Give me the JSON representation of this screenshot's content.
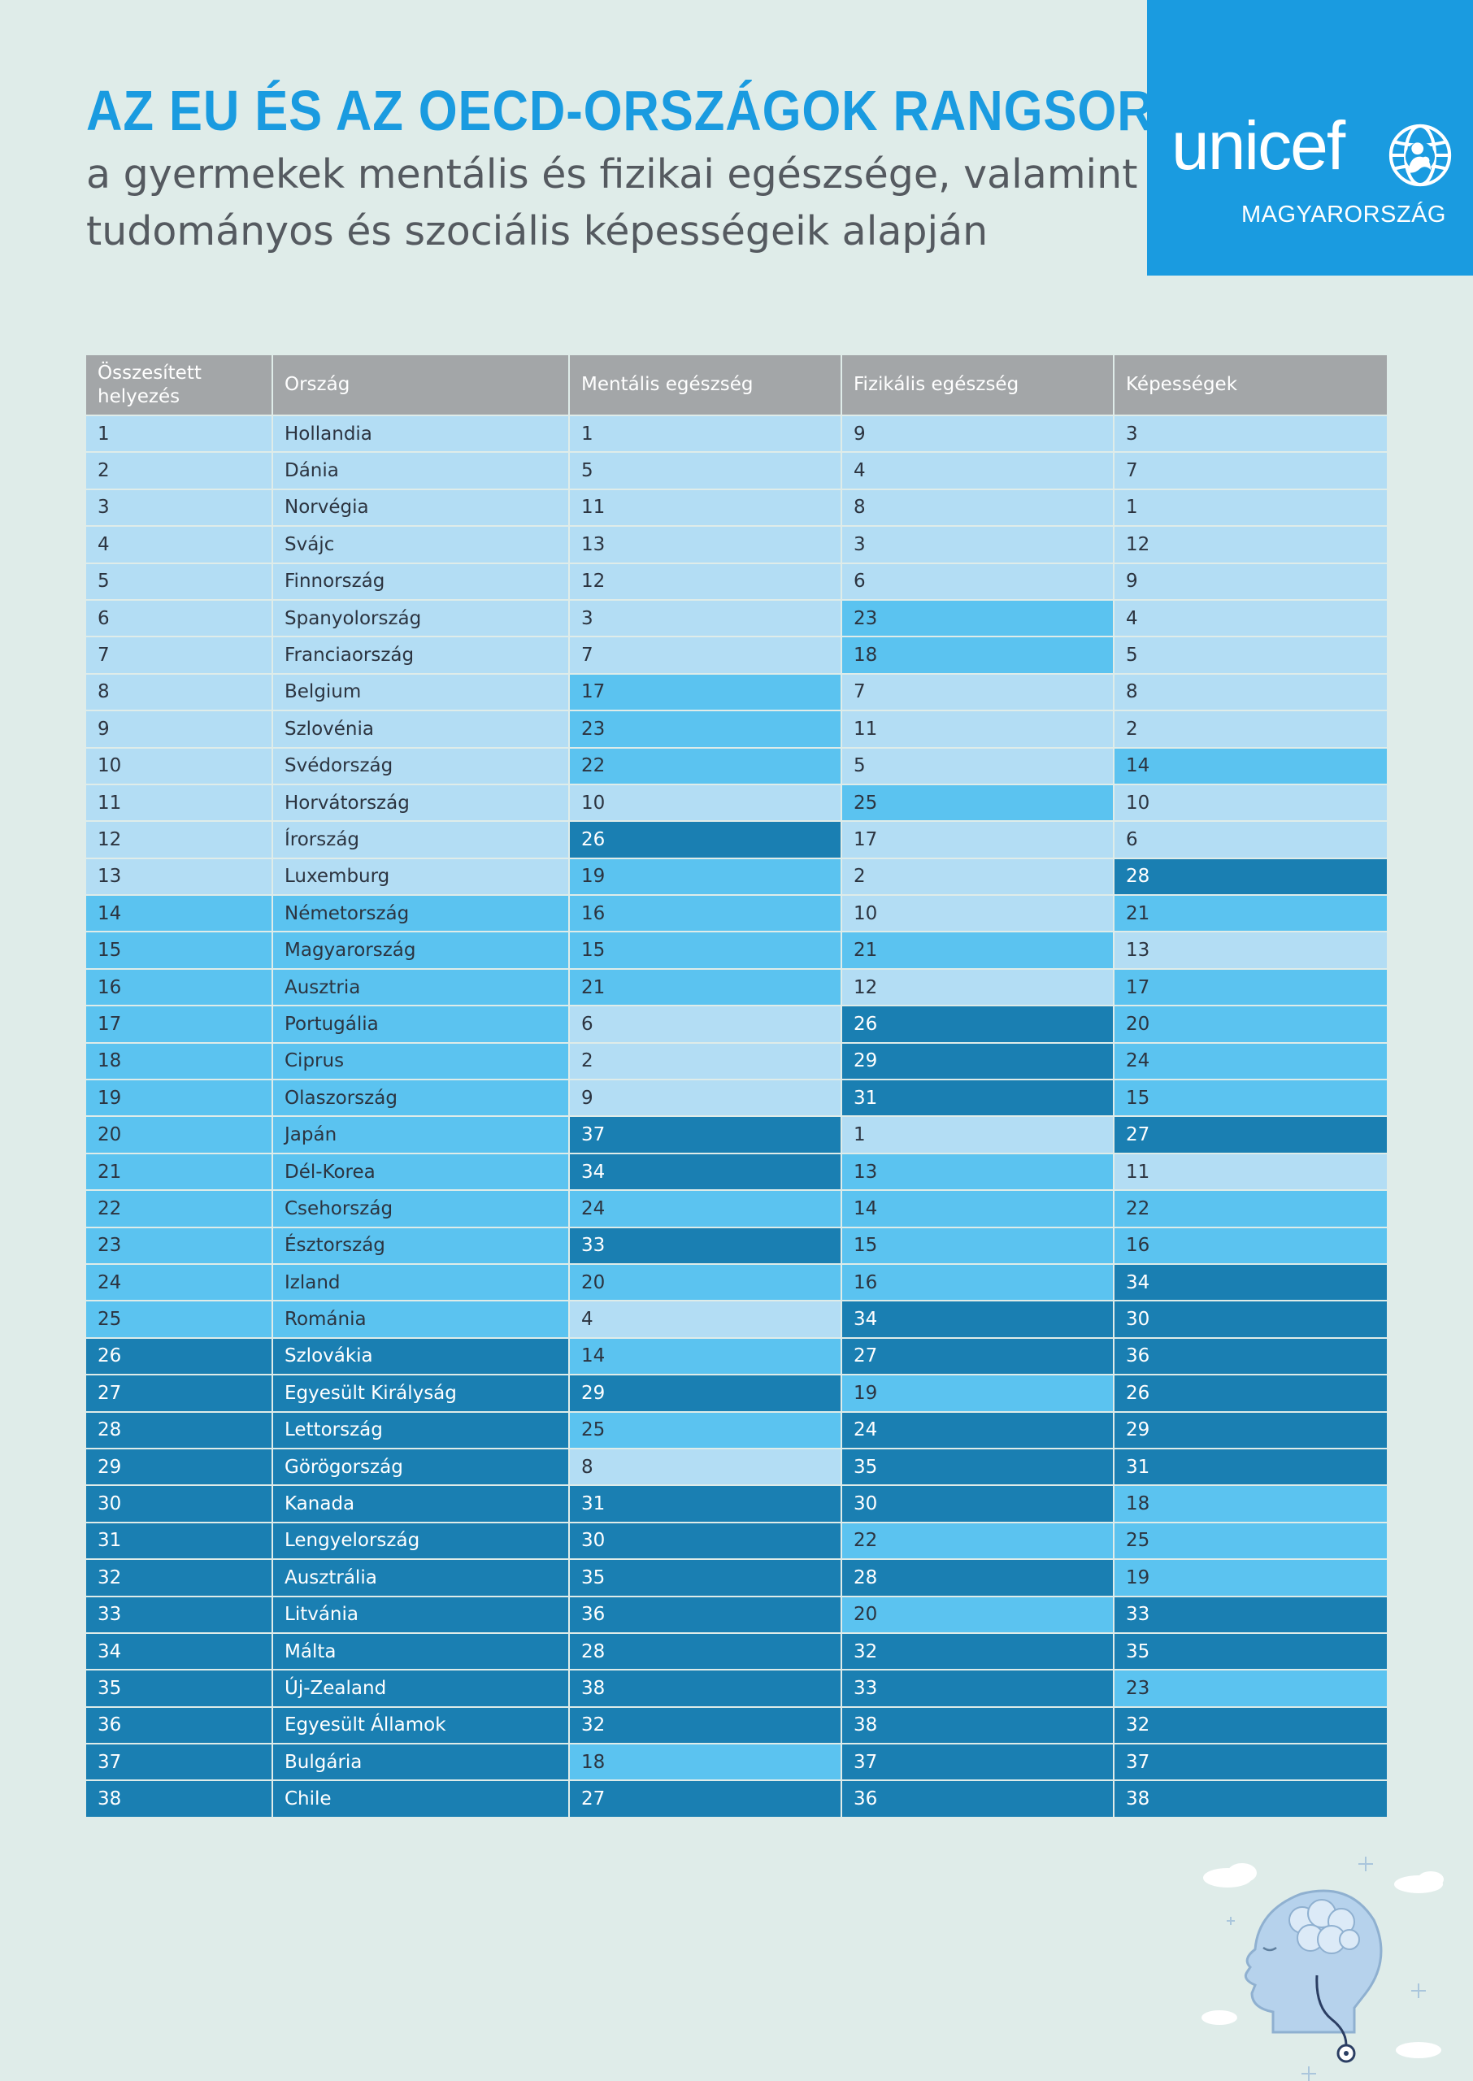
{
  "header": {
    "title": "AZ EU ÉS AZ OECD-ORSZÁGOK RANGSORA",
    "subtitle_line1": "a gyermekek mentális és fizikai egészsége, valamint",
    "subtitle_line2": "tudományos és szociális képességeik alapján"
  },
  "logo": {
    "wordmark": "unicef",
    "subtitle": "MAGYARORSZÁG",
    "brand_color": "#1a9be0",
    "icon": "unicef-emblem-icon"
  },
  "colors": {
    "background": "#dfece9",
    "header_gray": "#a3a6a8",
    "tier1": "#b3ddf4",
    "tier2": "#5bc3f0",
    "tier3": "#1a7fb2"
  },
  "table": {
    "headers": [
      "Összesített helyezés",
      "Ország",
      "Mentális egészség",
      "Fizikális egészség",
      "Képességek"
    ],
    "rows": [
      [
        "1",
        "Hollandia",
        "1",
        "9",
        "3"
      ],
      [
        "2",
        "Dánia",
        "5",
        "4",
        "7"
      ],
      [
        "3",
        "Norvégia",
        "11",
        "8",
        "1"
      ],
      [
        "4",
        "Svájc",
        "13",
        "3",
        "12"
      ],
      [
        "5",
        "Finnország",
        "12",
        "6",
        "9"
      ],
      [
        "6",
        "Spanyolország",
        "3",
        "23",
        "4"
      ],
      [
        "7",
        "Franciaország",
        "7",
        "18",
        "5"
      ],
      [
        "8",
        "Belgium",
        "17",
        "7",
        "8"
      ],
      [
        "9",
        "Szlovénia",
        "23",
        "11",
        "2"
      ],
      [
        "10",
        "Svédország",
        "22",
        "5",
        "14"
      ],
      [
        "11",
        "Horvátország",
        "10",
        "25",
        "10"
      ],
      [
        "12",
        "Írország",
        "26",
        "17",
        "6"
      ],
      [
        "13",
        "Luxemburg",
        "19",
        "2",
        "28"
      ],
      [
        "14",
        "Németország",
        "16",
        "10",
        "21"
      ],
      [
        "15",
        "Magyarország",
        "15",
        "21",
        "13"
      ],
      [
        "16",
        "Ausztria",
        "21",
        "12",
        "17"
      ],
      [
        "17",
        "Portugália",
        "6",
        "26",
        "20"
      ],
      [
        "18",
        "Ciprus",
        "2",
        "29",
        "24"
      ],
      [
        "19",
        "Olaszország",
        "9",
        "31",
        "15"
      ],
      [
        "20",
        "Japán",
        "37",
        "1",
        "27"
      ],
      [
        "21",
        "Dél-Korea",
        "34",
        "13",
        "11"
      ],
      [
        "22",
        "Csehország",
        "24",
        "14",
        "22"
      ],
      [
        "23",
        "Észtország",
        "33",
        "15",
        "16"
      ],
      [
        "24",
        "Izland",
        "20",
        "16",
        "34"
      ],
      [
        "25",
        "Románia",
        "4",
        "34",
        "30"
      ],
      [
        "26",
        "Szlovákia",
        "14",
        "27",
        "36"
      ],
      [
        "27",
        "Egyesült Királyság",
        "29",
        "19",
        "26"
      ],
      [
        "28",
        "Lettország",
        "25",
        "24",
        "29"
      ],
      [
        "29",
        "Görögország",
        "8",
        "35",
        "31"
      ],
      [
        "30",
        "Kanada",
        "31",
        "30",
        "18"
      ],
      [
        "31",
        "Lengyelország",
        "30",
        "22",
        "25"
      ],
      [
        "32",
        "Ausztrália",
        "35",
        "28",
        "19"
      ],
      [
        "33",
        "Litvánia",
        "36",
        "20",
        "33"
      ],
      [
        "34",
        "Málta",
        "28",
        "32",
        "35"
      ],
      [
        "35",
        "Új-Zealand",
        "38",
        "33",
        "23"
      ],
      [
        "36",
        "Egyesült Államok",
        "32",
        "38",
        "32"
      ],
      [
        "37",
        "Bulgária",
        "18",
        "37",
        "37"
      ],
      [
        "38",
        "Chile",
        "27",
        "36",
        "38"
      ]
    ]
  },
  "decoration": {
    "icon": "head-brain-illustration-icon"
  }
}
